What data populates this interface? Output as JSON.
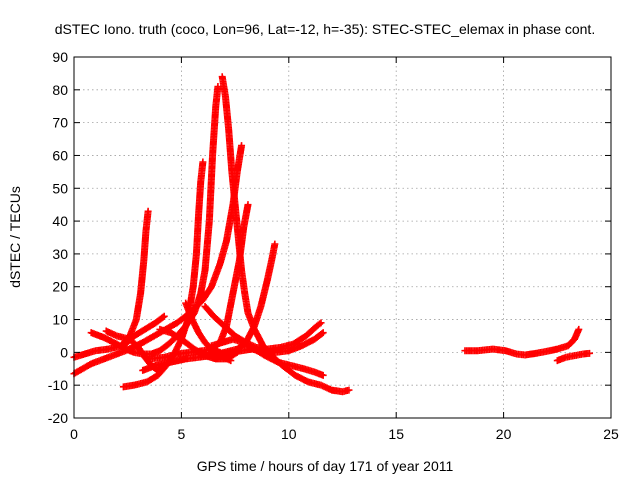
{
  "chart_data": {
    "type": "scatter",
    "title": "dSTEC Iono. truth (coco, Lon=96, Lat=-12, h=-35): STEC-STEC_elemax in phase cont.",
    "xlabel": "GPS time / hours of day 171 of year 2011",
    "ylabel": "dSTEC  / TECUs",
    "xlim": [
      0,
      25
    ],
    "ylim": [
      -20,
      90
    ],
    "xticks": [
      0,
      5,
      10,
      15,
      20,
      25
    ],
    "yticks": [
      -20,
      -10,
      0,
      10,
      20,
      30,
      40,
      50,
      60,
      70,
      80,
      90
    ],
    "grid": true,
    "marker": "+",
    "color": "#ff0000",
    "series": [
      {
        "points": [
          [
            0.0,
            -6.5
          ],
          [
            0.8,
            -3.5
          ],
          [
            1.6,
            -1.5
          ],
          [
            2.4,
            0.5
          ],
          [
            3.2,
            3
          ],
          [
            4.0,
            6
          ],
          [
            4.8,
            9
          ],
          [
            5.4,
            12
          ],
          [
            6.0,
            16
          ],
          [
            6.4,
            20
          ],
          [
            6.8,
            27
          ],
          [
            7.1,
            34
          ],
          [
            7.4,
            45
          ],
          [
            7.6,
            55
          ],
          [
            7.8,
            63
          ]
        ]
      },
      {
        "points": [
          [
            0.0,
            -1.5
          ],
          [
            0.5,
            -0.5
          ],
          [
            1.0,
            0.5
          ],
          [
            1.6,
            1
          ],
          [
            2.2,
            2
          ],
          [
            2.6,
            5
          ],
          [
            2.9,
            10
          ],
          [
            3.1,
            18
          ],
          [
            3.25,
            28
          ],
          [
            3.35,
            37
          ],
          [
            3.45,
            43
          ]
        ]
      },
      {
        "points": [
          [
            0.8,
            6
          ],
          [
            1.4,
            4.5
          ],
          [
            2.0,
            2.5
          ],
          [
            2.4,
            1
          ],
          [
            2.8,
            0
          ],
          [
            3.2,
            -0.5
          ],
          [
            3.6,
            -0.5
          ],
          [
            4.0,
            0.5
          ],
          [
            4.4,
            2.5
          ],
          [
            4.8,
            5
          ],
          [
            5.2,
            8
          ],
          [
            5.6,
            12
          ],
          [
            5.9,
            18
          ],
          [
            6.1,
            25
          ],
          [
            6.3,
            40
          ],
          [
            6.45,
            60
          ],
          [
            6.6,
            75
          ],
          [
            6.7,
            81
          ]
        ]
      },
      {
        "points": [
          [
            1.5,
            6.5
          ],
          [
            2.0,
            5
          ],
          [
            2.6,
            4
          ],
          [
            3.0,
            1.5
          ],
          [
            3.3,
            -1.5
          ],
          [
            3.6,
            -4
          ],
          [
            3.9,
            -5.5
          ],
          [
            4.2,
            -4
          ]
        ]
      },
      {
        "points": [
          [
            2.3,
            2
          ],
          [
            2.8,
            5
          ],
          [
            3.3,
            7
          ],
          [
            3.8,
            9
          ],
          [
            4.2,
            11
          ]
        ]
      },
      {
        "points": [
          [
            2.3,
            -10.5
          ],
          [
            2.8,
            -10
          ],
          [
            3.4,
            -9
          ],
          [
            3.9,
            -7
          ],
          [
            4.3,
            -4
          ],
          [
            4.7,
            0
          ],
          [
            5.0,
            4
          ],
          [
            5.3,
            10
          ],
          [
            5.55,
            20
          ],
          [
            5.7,
            30
          ],
          [
            5.8,
            42
          ],
          [
            5.9,
            52
          ],
          [
            6.0,
            58
          ]
        ]
      },
      {
        "points": [
          [
            3.2,
            -5.5
          ],
          [
            3.8,
            -4
          ],
          [
            4.5,
            -3
          ],
          [
            5.2,
            -2
          ],
          [
            5.8,
            -1.5
          ],
          [
            6.4,
            -1
          ],
          [
            7.0,
            0
          ],
          [
            7.6,
            1
          ],
          [
            8.0,
            3
          ],
          [
            8.4,
            8
          ],
          [
            8.7,
            14
          ],
          [
            9.0,
            22
          ],
          [
            9.2,
            28
          ],
          [
            9.35,
            33
          ]
        ]
      },
      {
        "points": [
          [
            3.5,
            -2
          ],
          [
            4.2,
            -1.5
          ],
          [
            4.8,
            -0.5
          ],
          [
            5.4,
            0
          ],
          [
            6.0,
            0.5
          ],
          [
            6.4,
            1
          ],
          [
            6.8,
            3
          ],
          [
            7.1,
            8
          ],
          [
            7.4,
            18
          ],
          [
            7.7,
            28
          ],
          [
            7.9,
            38
          ],
          [
            8.1,
            45
          ]
        ]
      },
      {
        "points": [
          [
            4.0,
            7
          ],
          [
            4.5,
            6
          ],
          [
            5.0,
            4
          ],
          [
            5.6,
            1
          ],
          [
            6.1,
            -1
          ],
          [
            6.6,
            -2
          ],
          [
            7.1,
            -2
          ],
          [
            7.6,
            0
          ]
        ]
      },
      {
        "points": [
          [
            5.8,
            -0.5
          ],
          [
            6.3,
            -1
          ],
          [
            6.8,
            -0.5
          ],
          [
            7.3,
            0
          ],
          [
            7.8,
            0.5
          ],
          [
            8.3,
            1
          ],
          [
            8.8,
            0
          ],
          [
            9.4,
            0
          ],
          [
            10.0,
            0.5
          ],
          [
            10.6,
            2
          ],
          [
            11.2,
            4
          ],
          [
            11.6,
            6
          ]
        ]
      },
      {
        "points": [
          [
            6.1,
            14
          ],
          [
            6.5,
            11
          ],
          [
            7.0,
            8
          ],
          [
            7.5,
            5
          ],
          [
            8.0,
            3
          ],
          [
            8.5,
            1.5
          ],
          [
            9.0,
            1
          ],
          [
            9.6,
            1.5
          ],
          [
            10.2,
            2.5
          ],
          [
            10.8,
            5
          ],
          [
            11.3,
            8
          ],
          [
            11.5,
            9
          ]
        ]
      },
      {
        "points": [
          [
            6.4,
            2
          ],
          [
            6.9,
            3
          ],
          [
            7.4,
            4
          ],
          [
            7.9,
            3
          ],
          [
            8.4,
            1
          ],
          [
            8.9,
            -1
          ],
          [
            9.5,
            -3
          ],
          [
            10.1,
            -4
          ],
          [
            10.7,
            -5
          ],
          [
            11.2,
            -6
          ],
          [
            11.6,
            -7
          ]
        ]
      },
      {
        "points": [
          [
            6.9,
            84
          ],
          [
            7.05,
            78
          ],
          [
            7.2,
            68
          ],
          [
            7.35,
            55
          ],
          [
            7.5,
            45
          ],
          [
            7.65,
            35
          ],
          [
            7.8,
            25
          ],
          [
            7.95,
            18
          ],
          [
            8.1,
            12
          ],
          [
            8.4,
            7
          ],
          [
            8.8,
            2
          ],
          [
            9.2,
            -1
          ],
          [
            9.7,
            -4
          ],
          [
            10.3,
            -7
          ],
          [
            10.9,
            -9
          ],
          [
            11.5,
            -10
          ],
          [
            12.0,
            -11.5
          ],
          [
            12.5,
            -12
          ],
          [
            12.8,
            -11.5
          ]
        ]
      },
      {
        "points": [
          [
            5.2,
            15
          ],
          [
            5.5,
            10
          ],
          [
            5.8,
            6
          ],
          [
            6.1,
            3
          ],
          [
            6.4,
            1
          ],
          [
            6.8,
            0
          ]
        ]
      },
      {
        "points": [
          [
            6.3,
            1
          ],
          [
            6.8,
            -1
          ],
          [
            7.3,
            -2.5
          ]
        ]
      },
      {
        "points": [
          [
            18.2,
            0.5
          ],
          [
            18.8,
            0.5
          ],
          [
            19.5,
            1
          ],
          [
            20.1,
            0.5
          ],
          [
            20.6,
            -0.5
          ],
          [
            21.0,
            -0.8
          ],
          [
            21.5,
            -0.3
          ],
          [
            22.0,
            0.3
          ],
          [
            22.5,
            1
          ],
          [
            23.0,
            2
          ],
          [
            23.3,
            4
          ],
          [
            23.5,
            7
          ]
        ]
      },
      {
        "points": [
          [
            22.5,
            -2.5
          ],
          [
            22.9,
            -1.5
          ],
          [
            23.3,
            -1
          ],
          [
            23.7,
            -0.5
          ],
          [
            24.0,
            -0.3
          ]
        ]
      }
    ]
  }
}
